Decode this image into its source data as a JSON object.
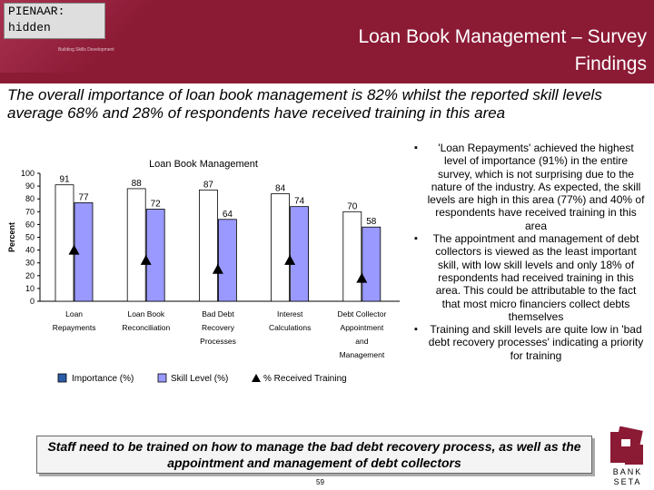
{
  "header": {
    "title_line1": "Loan Book Management – Survey",
    "title_line2": "Findings",
    "logo_tagline": "Building Skills Development"
  },
  "pienaar_note": {
    "line1": "PIENAAR:",
    "line2": "hidden"
  },
  "intro_text": "The overall importance of loan book management is 82% whilst the reported skill levels average 68% and 28% of respondents have received training in this area",
  "chart_data": {
    "type": "bar",
    "title": "Loan Book Management",
    "ylabel": "Percent",
    "xlabel": "",
    "ylim": [
      0,
      100
    ],
    "yticks": [
      "0",
      "10",
      "20",
      "30",
      "40",
      "50",
      "60",
      "70",
      "80",
      "90",
      "100"
    ],
    "categories": [
      [
        "Loan",
        "Repayments"
      ],
      [
        "Loan Book",
        "Reconciliation"
      ],
      [
        "Bad Debt",
        "Recovery",
        "Processes"
      ],
      [
        "Interest",
        "Calculations"
      ],
      [
        "Debt Collector",
        "Appointment",
        "and",
        "Management"
      ]
    ],
    "series": [
      {
        "name": "Importance (%)",
        "values": [
          91,
          88,
          87,
          84,
          70
        ],
        "labels": [
          "91",
          "88",
          "87",
          "84",
          "70"
        ]
      },
      {
        "name": "Skill Level (%)",
        "values": [
          77,
          72,
          64,
          74,
          58
        ],
        "labels": [
          "77",
          "72",
          "64",
          "74",
          "58"
        ]
      },
      {
        "name": "% Received Training",
        "values": [
          40,
          32,
          25,
          32,
          18
        ]
      }
    ],
    "legend": "bottom",
    "colors": {
      "importance": "#ffffff",
      "skill": "#9999ff",
      "training": "#000000",
      "importance_icon": "#2a5ca8"
    }
  },
  "bullets": [
    "'Loan Repayments' achieved the highest level of importance (91%) in the entire survey, which is not surprising due to the nature of the industry. As expected, the skill levels are high in this area (77%) and 40% of respondents have received training in this area",
    "The appointment and management of debt collectors is viewed as the least important skill, with low skill levels and only 18% of respondents had received training in this area. This could be attributable to the fact that most micro financiers collect debts themselves",
    "Training and skill levels are quite low in 'bad debt recovery processes' indicating a priority for training"
  ],
  "footer": {
    "text": "Staff need to be trained on how to manage the bad debt recovery process, as well as the appointment and management of debt collectors",
    "page_number": "59"
  },
  "bseta_logo": {
    "line1": "BANK",
    "line2": "SETA"
  }
}
